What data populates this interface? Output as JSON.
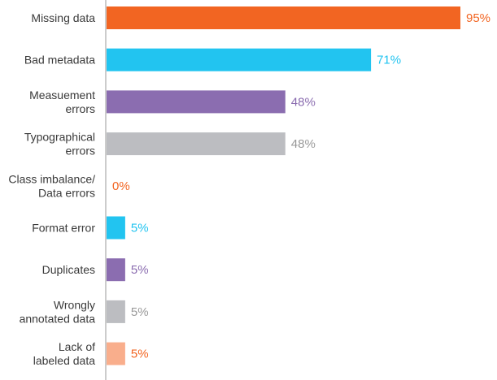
{
  "chart_data": {
    "type": "bar",
    "orientation": "horizontal",
    "categories": [
      [
        "Missing data"
      ],
      [
        "Bad metadata"
      ],
      [
        "Measuement",
        "errors"
      ],
      [
        "Typographical",
        "errors"
      ],
      [
        "Class imbalance/",
        "Data errors"
      ],
      [
        "Format error"
      ],
      [
        "Duplicates"
      ],
      [
        "Wrongly",
        "annotated data"
      ],
      [
        "Lack of",
        "labeled data"
      ]
    ],
    "values": [
      95,
      71,
      48,
      48,
      0,
      5,
      5,
      5,
      5
    ],
    "value_labels": [
      "95%",
      "71%",
      "48%",
      "48%",
      "0%",
      "5%",
      "5%",
      "5%",
      "5%"
    ],
    "colors": [
      "#f26522",
      "#22c4f0",
      "#8b6db0",
      "#bcbdc1",
      "#f26522",
      "#22c4f0",
      "#8b6db0",
      "#bcbdc1",
      "#f9ae8c"
    ],
    "label_colors": [
      "#f26522",
      "#22c4f0",
      "#8b6db0",
      "#999999",
      "#f26522",
      "#22c4f0",
      "#8b6db0",
      "#999999",
      "#f26522"
    ],
    "xlim": [
      0,
      100
    ],
    "grid": false,
    "axis_color": "#999999"
  }
}
